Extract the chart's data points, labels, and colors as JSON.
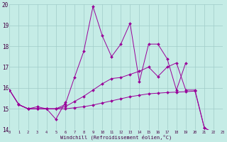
{
  "xlabel": "Windchill (Refroidissement éolien,°C)",
  "bg_color": "#c5ece6",
  "line_color": "#990099",
  "grid_color": "#a0ccc8",
  "xmin": 0,
  "xmax": 23,
  "ymin": 14,
  "ymax": 20,
  "series": [
    {
      "x": [
        0,
        1,
        2,
        3,
        4,
        5,
        6,
        7,
        8,
        9,
        10,
        11,
        12,
        13,
        14,
        15,
        16,
        17,
        18,
        19
      ],
      "y": [
        15.9,
        15.2,
        15.0,
        15.0,
        15.0,
        15.0,
        15.2,
        16.5,
        17.75,
        19.9,
        18.5,
        17.5,
        18.1,
        19.1,
        16.3,
        18.1,
        18.1,
        17.4,
        15.9,
        17.2
      ]
    },
    {
      "x": [
        1,
        2,
        3,
        4,
        5,
        6
      ],
      "y": [
        15.2,
        15.0,
        15.1,
        15.0,
        14.5,
        15.3
      ]
    },
    {
      "x": [
        0,
        1,
        2,
        3,
        4,
        5,
        6,
        7,
        8,
        9,
        10,
        11,
        12,
        13,
        14,
        15,
        16,
        17,
        18,
        19,
        20,
        21,
        22,
        23
      ],
      "y": [
        15.9,
        15.2,
        15.0,
        15.0,
        15.0,
        15.0,
        15.1,
        15.35,
        15.6,
        15.9,
        16.2,
        16.45,
        16.5,
        16.65,
        16.8,
        17.0,
        16.55,
        17.0,
        17.2,
        15.9,
        15.9,
        14.1,
        13.8,
        13.7
      ]
    },
    {
      "x": [
        0,
        1,
        2,
        3,
        4,
        5,
        6,
        7,
        8,
        9,
        10,
        11,
        12,
        13,
        14,
        15,
        16,
        17,
        18,
        19,
        20,
        21,
        22,
        23
      ],
      "y": [
        15.9,
        15.2,
        15.0,
        15.0,
        15.0,
        15.0,
        15.0,
        15.05,
        15.1,
        15.18,
        15.28,
        15.38,
        15.48,
        15.58,
        15.65,
        15.72,
        15.75,
        15.78,
        15.8,
        15.82,
        15.85,
        14.1,
        13.85,
        13.72
      ]
    }
  ]
}
